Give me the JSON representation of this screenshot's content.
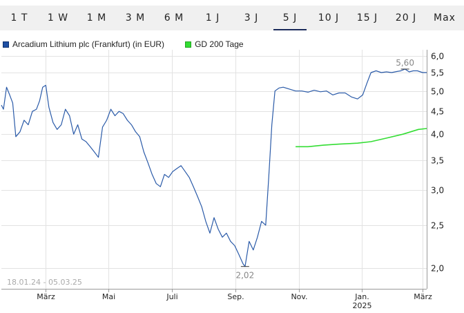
{
  "tabs": [
    {
      "label": "1 T",
      "active": false
    },
    {
      "label": "1 W",
      "active": false
    },
    {
      "label": "1 M",
      "active": false
    },
    {
      "label": "3 M",
      "active": false
    },
    {
      "label": "6 M",
      "active": false
    },
    {
      "label": "1 J",
      "active": false
    },
    {
      "label": "3 J",
      "active": false
    },
    {
      "label": "5 J",
      "active": true
    },
    {
      "label": "10 J",
      "active": false
    },
    {
      "label": "15 J",
      "active": false
    },
    {
      "label": "20 J",
      "active": false
    },
    {
      "label": "Max",
      "active": false
    }
  ],
  "legend": {
    "price": "Arcadium Lithium plc (Frankfurt) (in EUR)",
    "ma": "GD 200 Tage"
  },
  "chart_data": {
    "type": "line",
    "y_scale": "log",
    "ylim": [
      1.8,
      6.1
    ],
    "y_ticks": [
      "6,0",
      "5,5",
      "5,0",
      "4,5",
      "4,0",
      "3,5",
      "3,0",
      "2,5",
      "2,0"
    ],
    "y_tick_values": [
      6.0,
      5.5,
      5.0,
      4.5,
      4.0,
      3.5,
      3.0,
      2.5,
      2.0
    ],
    "x_range": [
      "2024-01-18",
      "2025-03-05"
    ],
    "x_ticks": [
      {
        "date": "2024-03-01",
        "label": "März"
      },
      {
        "date": "2024-05-01",
        "label": "Mai"
      },
      {
        "date": "2024-07-01",
        "label": "Juli"
      },
      {
        "date": "2024-09-01",
        "label": "Sep."
      },
      {
        "date": "2024-11-01",
        "label": "Nov."
      },
      {
        "date": "2025-01-01",
        "label": "Jan.",
        "sublabel": "2025"
      },
      {
        "date": "2025-03-01",
        "label": "März"
      }
    ],
    "date_range_label": "18.01.24 - 05.03.25",
    "annotations": {
      "min": {
        "date": "2024-09-10",
        "value": 2.02,
        "label": "2,02"
      },
      "max": {
        "date": "2025-02-12",
        "value": 5.6,
        "label": "5,60"
      }
    },
    "grid": true,
    "series": [
      {
        "name": "Arcadium Lithium plc (Frankfurt) (in EUR)",
        "color": "#2a5aa8",
        "points": [
          [
            "2024-01-18",
            4.65
          ],
          [
            "2024-01-20",
            4.55
          ],
          [
            "2024-01-23",
            5.1
          ],
          [
            "2024-01-26",
            4.9
          ],
          [
            "2024-01-29",
            4.7
          ],
          [
            "2024-02-01",
            3.95
          ],
          [
            "2024-02-05",
            4.05
          ],
          [
            "2024-02-09",
            4.3
          ],
          [
            "2024-02-13",
            4.2
          ],
          [
            "2024-02-17",
            4.5
          ],
          [
            "2024-02-21",
            4.55
          ],
          [
            "2024-02-24",
            4.75
          ],
          [
            "2024-02-27",
            5.1
          ],
          [
            "2024-03-01",
            5.15
          ],
          [
            "2024-03-04",
            4.6
          ],
          [
            "2024-03-08",
            4.25
          ],
          [
            "2024-03-12",
            4.1
          ],
          [
            "2024-03-16",
            4.2
          ],
          [
            "2024-03-20",
            4.55
          ],
          [
            "2024-03-24",
            4.4
          ],
          [
            "2024-03-28",
            4.0
          ],
          [
            "2024-04-01",
            4.2
          ],
          [
            "2024-04-05",
            3.9
          ],
          [
            "2024-04-09",
            3.85
          ],
          [
            "2024-04-13",
            3.75
          ],
          [
            "2024-04-17",
            3.65
          ],
          [
            "2024-04-21",
            3.55
          ],
          [
            "2024-04-25",
            4.15
          ],
          [
            "2024-04-29",
            4.3
          ],
          [
            "2024-05-03",
            4.55
          ],
          [
            "2024-05-07",
            4.4
          ],
          [
            "2024-05-11",
            4.5
          ],
          [
            "2024-05-15",
            4.45
          ],
          [
            "2024-05-19",
            4.3
          ],
          [
            "2024-05-23",
            4.2
          ],
          [
            "2024-05-27",
            4.05
          ],
          [
            "2024-05-31",
            3.95
          ],
          [
            "2024-06-04",
            3.65
          ],
          [
            "2024-06-08",
            3.45
          ],
          [
            "2024-06-12",
            3.25
          ],
          [
            "2024-06-16",
            3.1
          ],
          [
            "2024-06-20",
            3.05
          ],
          [
            "2024-06-24",
            3.25
          ],
          [
            "2024-06-28",
            3.2
          ],
          [
            "2024-07-02",
            3.3
          ],
          [
            "2024-07-06",
            3.35
          ],
          [
            "2024-07-10",
            3.4
          ],
          [
            "2024-07-14",
            3.3
          ],
          [
            "2024-07-18",
            3.2
          ],
          [
            "2024-07-22",
            3.05
          ],
          [
            "2024-07-26",
            2.9
          ],
          [
            "2024-07-30",
            2.75
          ],
          [
            "2024-08-03",
            2.55
          ],
          [
            "2024-08-07",
            2.4
          ],
          [
            "2024-08-11",
            2.6
          ],
          [
            "2024-08-15",
            2.45
          ],
          [
            "2024-08-19",
            2.35
          ],
          [
            "2024-08-23",
            2.4
          ],
          [
            "2024-08-27",
            2.3
          ],
          [
            "2024-08-31",
            2.25
          ],
          [
            "2024-09-04",
            2.15
          ],
          [
            "2024-09-08",
            2.05
          ],
          [
            "2024-09-10",
            2.02
          ],
          [
            "2024-09-14",
            2.3
          ],
          [
            "2024-09-18",
            2.2
          ],
          [
            "2024-09-22",
            2.35
          ],
          [
            "2024-09-26",
            2.55
          ],
          [
            "2024-09-30",
            2.5
          ],
          [
            "2024-10-03",
            3.2
          ],
          [
            "2024-10-06",
            4.2
          ],
          [
            "2024-10-09",
            5.0
          ],
          [
            "2024-10-13",
            5.08
          ],
          [
            "2024-10-17",
            5.1
          ],
          [
            "2024-10-23",
            5.05
          ],
          [
            "2024-10-29",
            5.0
          ],
          [
            "2024-11-04",
            5.0
          ],
          [
            "2024-11-10",
            4.97
          ],
          [
            "2024-11-16",
            5.02
          ],
          [
            "2024-11-22",
            4.98
          ],
          [
            "2024-11-28",
            5.0
          ],
          [
            "2024-12-04",
            4.9
          ],
          [
            "2024-12-10",
            4.95
          ],
          [
            "2024-12-16",
            4.95
          ],
          [
            "2024-12-22",
            4.85
          ],
          [
            "2024-12-28",
            4.8
          ],
          [
            "2025-01-02",
            4.9
          ],
          [
            "2025-01-06",
            5.2
          ],
          [
            "2025-01-10",
            5.5
          ],
          [
            "2025-01-15",
            5.55
          ],
          [
            "2025-01-20",
            5.5
          ],
          [
            "2025-01-25",
            5.52
          ],
          [
            "2025-01-30",
            5.5
          ],
          [
            "2025-02-04",
            5.53
          ],
          [
            "2025-02-08",
            5.55
          ],
          [
            "2025-02-12",
            5.6
          ],
          [
            "2025-02-16",
            5.52
          ],
          [
            "2025-02-20",
            5.55
          ],
          [
            "2025-02-24",
            5.55
          ],
          [
            "2025-03-01",
            5.5
          ],
          [
            "2025-03-05",
            5.5
          ]
        ]
      },
      {
        "name": "GD 200 Tage",
        "color": "#33dd33",
        "points": [
          [
            "2024-10-29",
            3.75
          ],
          [
            "2024-11-10",
            3.75
          ],
          [
            "2024-11-25",
            3.78
          ],
          [
            "2024-12-10",
            3.8
          ],
          [
            "2024-12-28",
            3.82
          ],
          [
            "2025-01-10",
            3.85
          ],
          [
            "2025-01-25",
            3.92
          ],
          [
            "2025-02-10",
            4.0
          ],
          [
            "2025-02-25",
            4.1
          ],
          [
            "2025-03-05",
            4.12
          ]
        ]
      }
    ]
  }
}
